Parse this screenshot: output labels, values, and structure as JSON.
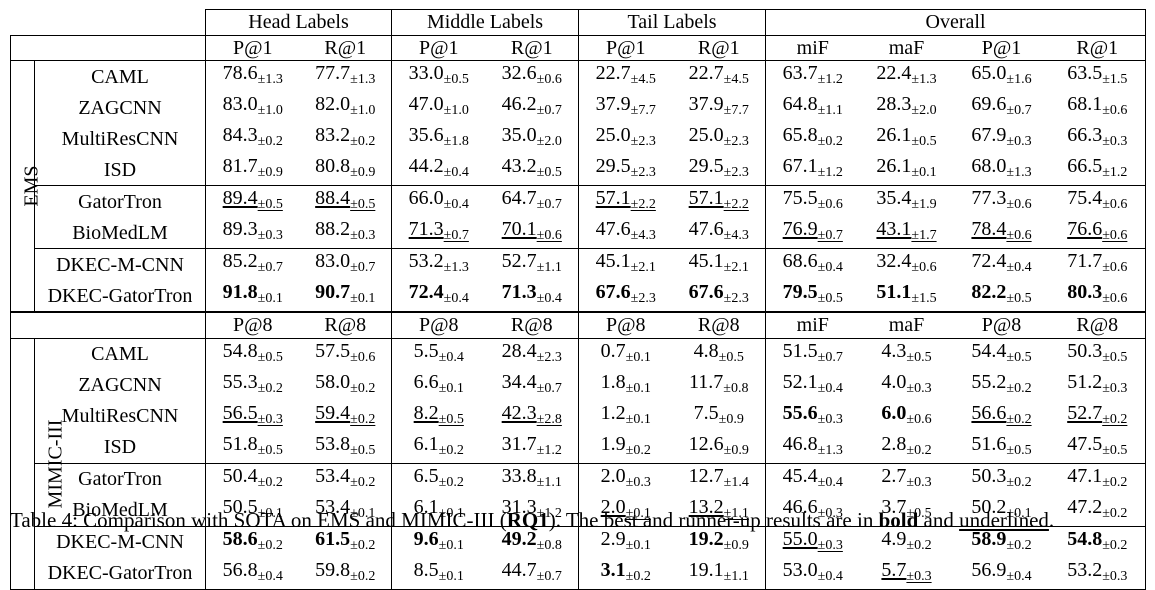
{
  "groups": [
    "Head Labels",
    "Middle Labels",
    "Tail Labels",
    "Overall"
  ],
  "sections": [
    {
      "dataset": "EMS",
      "columns": [
        "P@1",
        "R@1",
        "P@1",
        "R@1",
        "P@1",
        "R@1",
        "miF",
        "maF",
        "P@1",
        "R@1"
      ],
      "rows": [
        {
          "model": "CAML",
          "cells": [
            [
              "78.6",
              "±1.3",
              ""
            ],
            [
              "77.7",
              "±1.3",
              ""
            ],
            [
              "33.0",
              "±0.5",
              ""
            ],
            [
              "32.6",
              "±0.6",
              ""
            ],
            [
              "22.7",
              "±4.5",
              ""
            ],
            [
              "22.7",
              "±4.5",
              ""
            ],
            [
              "63.7",
              "±1.2",
              ""
            ],
            [
              "22.4",
              "±1.3",
              ""
            ],
            [
              "65.0",
              "±1.6",
              ""
            ],
            [
              "63.5",
              "±1.5",
              ""
            ]
          ]
        },
        {
          "model": "ZAGCNN",
          "cells": [
            [
              "83.0",
              "±1.0",
              ""
            ],
            [
              "82.0",
              "±1.0",
              ""
            ],
            [
              "47.0",
              "±1.0",
              ""
            ],
            [
              "46.2",
              "±0.7",
              ""
            ],
            [
              "37.9",
              "±7.7",
              ""
            ],
            [
              "37.9",
              "±7.7",
              ""
            ],
            [
              "64.8",
              "±1.1",
              ""
            ],
            [
              "28.3",
              "±2.0",
              ""
            ],
            [
              "69.6",
              "±0.7",
              ""
            ],
            [
              "68.1",
              "±0.6",
              ""
            ]
          ]
        },
        {
          "model": "MultiResCNN",
          "cells": [
            [
              "84.3",
              "±0.2",
              ""
            ],
            [
              "83.2",
              "±0.2",
              ""
            ],
            [
              "35.6",
              "±1.8",
              ""
            ],
            [
              "35.0",
              "±2.0",
              ""
            ],
            [
              "25.0",
              "±2.3",
              ""
            ],
            [
              "25.0",
              "±2.3",
              ""
            ],
            [
              "65.8",
              "±0.2",
              ""
            ],
            [
              "26.1",
              "±0.5",
              ""
            ],
            [
              "67.9",
              "±0.3",
              ""
            ],
            [
              "66.3",
              "±0.3",
              ""
            ]
          ]
        },
        {
          "model": "ISD",
          "cells": [
            [
              "81.7",
              "±0.9",
              ""
            ],
            [
              "80.8",
              "±0.9",
              ""
            ],
            [
              "44.2",
              "±0.4",
              ""
            ],
            [
              "43.2",
              "±0.5",
              ""
            ],
            [
              "29.5",
              "±2.3",
              ""
            ],
            [
              "29.5",
              "±2.3",
              ""
            ],
            [
              "67.1",
              "±1.2",
              ""
            ],
            [
              "26.1",
              "±0.1",
              ""
            ],
            [
              "68.0",
              "±1.3",
              ""
            ],
            [
              "66.5",
              "±1.2",
              ""
            ]
          ]
        },
        {
          "model": "GatorTron",
          "groupStart": true,
          "cells": [
            [
              "89.4",
              "±0.5",
              "u"
            ],
            [
              "88.4",
              "±0.5",
              "u"
            ],
            [
              "66.0",
              "±0.4",
              ""
            ],
            [
              "64.7",
              "±0.7",
              ""
            ],
            [
              "57.1",
              "±2.2",
              "u"
            ],
            [
              "57.1",
              "±2.2",
              "u"
            ],
            [
              "75.5",
              "±0.6",
              ""
            ],
            [
              "35.4",
              "±1.9",
              ""
            ],
            [
              "77.3",
              "±0.6",
              ""
            ],
            [
              "75.4",
              "±0.6",
              ""
            ]
          ]
        },
        {
          "model": "BioMedLM",
          "cells": [
            [
              "89.3",
              "±0.3",
              ""
            ],
            [
              "88.2",
              "±0.3",
              ""
            ],
            [
              "71.3",
              "±0.7",
              "u"
            ],
            [
              "70.1",
              "±0.6",
              "u"
            ],
            [
              "47.6",
              "±4.3",
              ""
            ],
            [
              "47.6",
              "±4.3",
              ""
            ],
            [
              "76.9",
              "±0.7",
              "u"
            ],
            [
              "43.1",
              "±1.7",
              "u"
            ],
            [
              "78.4",
              "±0.6",
              "u"
            ],
            [
              "76.6",
              "±0.6",
              "u"
            ]
          ]
        },
        {
          "model": "DKEC-M-CNN",
          "groupStart": true,
          "cells": [
            [
              "85.2",
              "±0.7",
              ""
            ],
            [
              "83.0",
              "±0.7",
              ""
            ],
            [
              "53.2",
              "±1.3",
              ""
            ],
            [
              "52.7",
              "±1.1",
              ""
            ],
            [
              "45.1",
              "±2.1",
              ""
            ],
            [
              "45.1",
              "±2.1",
              ""
            ],
            [
              "68.6",
              "±0.4",
              ""
            ],
            [
              "32.4",
              "±0.6",
              ""
            ],
            [
              "72.4",
              "±0.4",
              ""
            ],
            [
              "71.7",
              "±0.6",
              ""
            ]
          ]
        },
        {
          "model": "DKEC-GatorTron",
          "cells": [
            [
              "91.8",
              "±0.1",
              "b"
            ],
            [
              "90.7",
              "±0.1",
              "b"
            ],
            [
              "72.4",
              "±0.4",
              "b"
            ],
            [
              "71.3",
              "±0.4",
              "b"
            ],
            [
              "67.6",
              "±2.3",
              "b"
            ],
            [
              "67.6",
              "±2.3",
              "b"
            ],
            [
              "79.5",
              "±0.5",
              "b"
            ],
            [
              "51.1",
              "±1.5",
              "b"
            ],
            [
              "82.2",
              "±0.5",
              "b"
            ],
            [
              "80.3",
              "±0.6",
              "b"
            ]
          ]
        }
      ]
    },
    {
      "dataset": "MIMIC-III",
      "columns": [
        "P@8",
        "R@8",
        "P@8",
        "R@8",
        "P@8",
        "R@8",
        "miF",
        "maF",
        "P@8",
        "R@8"
      ],
      "rows": [
        {
          "model": "CAML",
          "cells": [
            [
              "54.8",
              "±0.5",
              ""
            ],
            [
              "57.5",
              "±0.6",
              ""
            ],
            [
              "5.5",
              "±0.4",
              ""
            ],
            [
              "28.4",
              "±2.3",
              ""
            ],
            [
              "0.7",
              "±0.1",
              ""
            ],
            [
              "4.8",
              "±0.5",
              ""
            ],
            [
              "51.5",
              "±0.7",
              ""
            ],
            [
              "4.3",
              "±0.5",
              ""
            ],
            [
              "54.4",
              "±0.5",
              ""
            ],
            [
              "50.3",
              "±0.5",
              ""
            ]
          ]
        },
        {
          "model": "ZAGCNN",
          "cells": [
            [
              "55.3",
              "±0.2",
              ""
            ],
            [
              "58.0",
              "±0.2",
              ""
            ],
            [
              "6.6",
              "±0.1",
              ""
            ],
            [
              "34.4",
              "±0.7",
              ""
            ],
            [
              "1.8",
              "±0.1",
              ""
            ],
            [
              "11.7",
              "±0.8",
              ""
            ],
            [
              "52.1",
              "±0.4",
              ""
            ],
            [
              "4.0",
              "±0.3",
              ""
            ],
            [
              "55.2",
              "±0.2",
              ""
            ],
            [
              "51.2",
              "±0.3",
              ""
            ]
          ]
        },
        {
          "model": "MultiResCNN",
          "cells": [
            [
              "56.5",
              "±0.3",
              "u"
            ],
            [
              "59.4",
              "±0.2",
              "u"
            ],
            [
              "8.2",
              "±0.5",
              "u"
            ],
            [
              "42.3",
              "±2.8",
              "u"
            ],
            [
              "1.2",
              "±0.1",
              ""
            ],
            [
              "7.5",
              "±0.9",
              ""
            ],
            [
              "55.6",
              "±0.3",
              "b"
            ],
            [
              "6.0",
              "±0.6",
              "b"
            ],
            [
              "56.6",
              "±0.2",
              "u"
            ],
            [
              "52.7",
              "±0.2",
              "u"
            ]
          ]
        },
        {
          "model": "ISD",
          "cells": [
            [
              "51.8",
              "±0.5",
              ""
            ],
            [
              "53.8",
              "±0.5",
              ""
            ],
            [
              "6.1",
              "±0.2",
              ""
            ],
            [
              "31.7",
              "±1.2",
              ""
            ],
            [
              "1.9",
              "±0.2",
              ""
            ],
            [
              "12.6",
              "±0.9",
              ""
            ],
            [
              "46.8",
              "±1.3",
              ""
            ],
            [
              "2.8",
              "±0.2",
              ""
            ],
            [
              "51.6",
              "±0.5",
              ""
            ],
            [
              "47.5",
              "±0.5",
              ""
            ]
          ]
        },
        {
          "model": "GatorTron",
          "groupStart": true,
          "cells": [
            [
              "50.4",
              "±0.2",
              ""
            ],
            [
              "53.4",
              "±0.2",
              ""
            ],
            [
              "6.5",
              "±0.2",
              ""
            ],
            [
              "33.8",
              "±1.1",
              ""
            ],
            [
              "2.0",
              "±0.3",
              ""
            ],
            [
              "12.7",
              "±1.4",
              ""
            ],
            [
              "45.4",
              "±0.4",
              ""
            ],
            [
              "2.7",
              "±0.3",
              ""
            ],
            [
              "50.3",
              "±0.2",
              ""
            ],
            [
              "47.1",
              "±0.2",
              ""
            ]
          ]
        },
        {
          "model": "BioMedLM",
          "cells": [
            [
              "50.5",
              "±0.1",
              ""
            ],
            [
              "53.4",
              "±0.1",
              ""
            ],
            [
              "6.1",
              "±0.1",
              ""
            ],
            [
              "31.3",
              "±1.2",
              ""
            ],
            [
              "2.0",
              "±0.1",
              "u"
            ],
            [
              "13.2",
              "±1.1",
              "u"
            ],
            [
              "46.6",
              "±0.3",
              ""
            ],
            [
              "3.7",
              "±0.5",
              ""
            ],
            [
              "50.2",
              "±0.1",
              ""
            ],
            [
              "47.2",
              "±0.2",
              ""
            ]
          ]
        },
        {
          "model": "DKEC-M-CNN",
          "groupStart": true,
          "cells": [
            [
              "58.6",
              "±0.2",
              "b"
            ],
            [
              "61.5",
              "±0.2",
              "b"
            ],
            [
              "9.6",
              "±0.1",
              "b"
            ],
            [
              "49.2",
              "±0.8",
              "b"
            ],
            [
              "2.9",
              "±0.1",
              ""
            ],
            [
              "19.2",
              "±0.9",
              "b"
            ],
            [
              "55.0",
              "±0.3",
              "u"
            ],
            [
              "4.9",
              "±0.2",
              ""
            ],
            [
              "58.9",
              "±0.2",
              "b"
            ],
            [
              "54.8",
              "±0.2",
              "b"
            ]
          ]
        },
        {
          "model": "DKEC-GatorTron",
          "cells": [
            [
              "56.8",
              "±0.4",
              ""
            ],
            [
              "59.8",
              "±0.2",
              ""
            ],
            [
              "8.5",
              "±0.1",
              ""
            ],
            [
              "44.7",
              "±0.7",
              ""
            ],
            [
              "3.1",
              "±0.2",
              "b"
            ],
            [
              "19.1",
              "±1.1",
              ""
            ],
            [
              "53.0",
              "±0.4",
              ""
            ],
            [
              "5.7",
              "±0.3",
              "u"
            ],
            [
              "56.9",
              "±0.4",
              ""
            ],
            [
              "53.2",
              "±0.3",
              ""
            ]
          ]
        }
      ]
    }
  ],
  "caption": {
    "t1": "Table 4: Comparison with SOTA on EMS and MIMIC-III (",
    "t2": "RQ1",
    "t3": "). The best and runner-up results are in ",
    "t4": "bold",
    "t5": " and ",
    "t6": "underlined",
    "t7": "."
  }
}
